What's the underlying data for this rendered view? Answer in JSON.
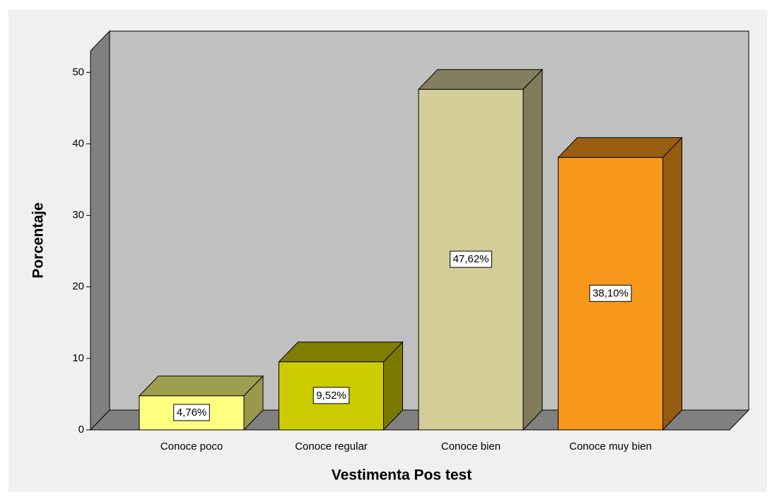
{
  "chart_data": {
    "type": "bar3d",
    "x_label": "Vestimenta Pos test",
    "y_label": "Porcentaje",
    "categories": [
      "Conoce poco",
      "Conoce regular",
      "Conoce bien",
      "Conoce muy bien"
    ],
    "values": [
      4.76,
      9.52,
      47.62,
      38.1
    ],
    "value_labels": [
      "4,76%",
      "9,52%",
      "47,62%",
      "38,10%"
    ],
    "colors": [
      "#ffff80",
      "#cccc00",
      "#d3cd98",
      "#f7981d"
    ],
    "ylim": [
      0,
      53
    ],
    "yticks": [
      0,
      10,
      20,
      30,
      40,
      50
    ]
  }
}
